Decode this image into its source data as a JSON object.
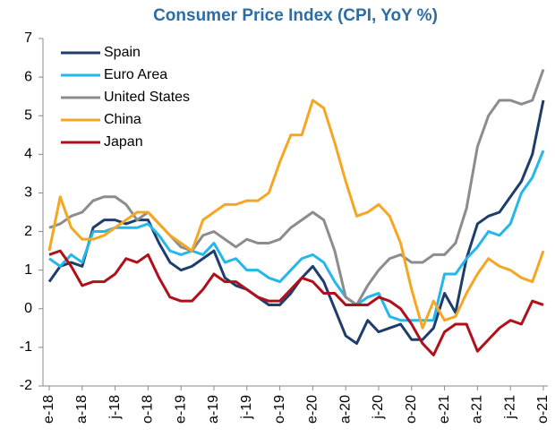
{
  "chart_data": {
    "type": "line",
    "title": "Consumer Price Index (CPI, YoY %)",
    "categories": [
      "e-18",
      null,
      null,
      "a-18",
      null,
      null,
      "j-18",
      null,
      null,
      "o-18",
      null,
      null,
      "e-19",
      null,
      null,
      "a-19",
      null,
      null,
      "j-19",
      null,
      null,
      "o-19",
      null,
      null,
      "e-20",
      null,
      null,
      "a-20",
      null,
      null,
      "j-20",
      null,
      null,
      "o-20",
      null,
      null,
      "e-21",
      null,
      null,
      "a-21",
      null,
      null,
      "j-21",
      null,
      null,
      "o-21"
    ],
    "series": [
      {
        "name": "Spain",
        "color": "#1f3d6b",
        "values": [
          0.7,
          1.1,
          1.2,
          1.1,
          2.1,
          2.3,
          2.3,
          2.2,
          2.3,
          2.3,
          1.7,
          1.2,
          1.0,
          1.1,
          1.3,
          1.5,
          0.8,
          0.6,
          0.5,
          0.3,
          0.1,
          0.1,
          0.4,
          0.8,
          1.1,
          0.7,
          0.0,
          -0.7,
          -0.9,
          -0.3,
          -0.6,
          -0.5,
          -0.4,
          -0.8,
          -0.8,
          -0.5,
          0.4,
          -0.1,
          1.3,
          2.2,
          2.4,
          2.5,
          2.9,
          3.3,
          4.0,
          5.4
        ]
      },
      {
        "name": "Euro Area",
        "color": "#25b6ea",
        "values": [
          1.3,
          1.1,
          1.4,
          1.2,
          2.0,
          2.0,
          2.1,
          2.1,
          2.1,
          2.2,
          1.9,
          1.5,
          1.4,
          1.5,
          1.4,
          1.7,
          1.2,
          1.3,
          1.0,
          1.0,
          0.8,
          0.7,
          1.0,
          1.3,
          1.4,
          1.2,
          0.7,
          0.3,
          0.1,
          0.3,
          0.4,
          -0.2,
          -0.3,
          -0.3,
          -0.3,
          -0.3,
          0.9,
          0.9,
          1.3,
          1.6,
          2.0,
          1.9,
          2.2,
          3.0,
          3.4,
          4.1
        ]
      },
      {
        "name": "United States",
        "color": "#8c8c8c",
        "values": [
          2.1,
          2.2,
          2.4,
          2.5,
          2.8,
          2.9,
          2.9,
          2.7,
          2.3,
          2.5,
          2.2,
          1.9,
          1.6,
          1.5,
          1.9,
          2.0,
          1.8,
          1.6,
          1.8,
          1.7,
          1.7,
          1.8,
          2.1,
          2.3,
          2.5,
          2.3,
          1.5,
          0.3,
          0.1,
          0.6,
          1.0,
          1.3,
          1.4,
          1.2,
          1.2,
          1.4,
          1.4,
          1.7,
          2.6,
          4.2,
          5.0,
          5.4,
          5.4,
          5.3,
          5.4,
          6.2
        ]
      },
      {
        "name": "China",
        "color": "#f5a623",
        "values": [
          1.5,
          2.9,
          2.1,
          1.8,
          1.8,
          1.9,
          2.1,
          2.3,
          2.5,
          2.5,
          2.2,
          1.9,
          1.7,
          1.5,
          2.3,
          2.5,
          2.7,
          2.7,
          2.8,
          2.8,
          3.0,
          3.8,
          4.5,
          4.5,
          5.4,
          5.2,
          4.3,
          3.3,
          2.4,
          2.5,
          2.7,
          2.4,
          1.7,
          0.5,
          -0.5,
          0.2,
          -0.3,
          -0.2,
          0.4,
          0.9,
          1.3,
          1.1,
          1.0,
          0.8,
          0.7,
          1.5
        ]
      },
      {
        "name": "Japan",
        "color": "#b0101a",
        "values": [
          1.4,
          1.5,
          1.1,
          0.6,
          0.7,
          0.7,
          0.9,
          1.3,
          1.2,
          1.4,
          0.8,
          0.3,
          0.2,
          0.2,
          0.5,
          0.9,
          0.7,
          0.7,
          0.5,
          0.3,
          0.2,
          0.2,
          0.5,
          0.8,
          0.7,
          0.4,
          0.4,
          0.1,
          0.1,
          0.1,
          0.3,
          0.2,
          0.0,
          -0.4,
          -0.9,
          -1.2,
          -0.6,
          -0.4,
          -0.4,
          -1.1,
          -0.8,
          -0.5,
          -0.3,
          -0.4,
          0.2,
          0.1
        ]
      }
    ],
    "ylim": [
      -2,
      7
    ],
    "yticks": [
      -2,
      -1,
      0,
      1,
      2,
      3,
      4,
      5,
      6,
      7
    ],
    "legend": "upper left"
  }
}
